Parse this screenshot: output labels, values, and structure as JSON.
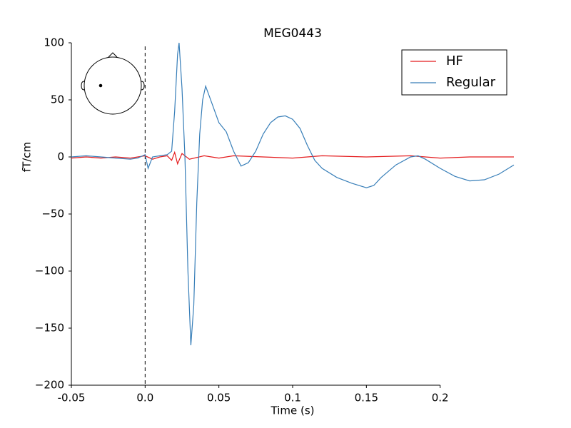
{
  "chart_data": {
    "type": "line",
    "title": "MEG0443",
    "x_label": "Time (s)",
    "y_label": "fT/cm",
    "xlim": [
      -0.05,
      0.25
    ],
    "ylim": [
      -200,
      100
    ],
    "xticks": [
      -0.05,
      {
        "value": 0,
        "label": "0.0"
      },
      0.05,
      0.1,
      0.15,
      0.2
    ],
    "yticks": [
      {
        "value": -200,
        "label": "−200"
      },
      {
        "value": -150,
        "label": "−150"
      },
      {
        "value": -100,
        "label": "−100"
      },
      {
        "value": -50,
        "label": "−50"
      },
      0,
      50,
      100
    ],
    "legend": "upper right",
    "series": [
      {
        "name": "HF",
        "color": "#e41a1c",
        "x": [
          -0.05,
          -0.04,
          -0.03,
          -0.02,
          -0.01,
          0,
          0.005,
          0.01,
          0.015,
          0.018,
          0.02,
          0.022,
          0.025,
          0.03,
          0.04,
          0.05,
          0.06,
          0.08,
          0.1,
          0.12,
          0.15,
          0.18,
          0.2,
          0.22,
          0.25
        ],
        "values": [
          -1,
          0,
          -1,
          0,
          -1,
          1,
          -2,
          0,
          1,
          -3,
          4,
          -6,
          3,
          -2,
          1,
          -1,
          1,
          0,
          -1,
          1,
          0,
          1,
          -1,
          0,
          0
        ]
      },
      {
        "name": "Regular",
        "color": "#377eb8",
        "x": [
          -0.05,
          -0.04,
          -0.03,
          -0.02,
          -0.01,
          -0.005,
          0,
          0.002,
          0.005,
          0.01,
          0.015,
          0.018,
          0.02,
          0.022,
          0.023,
          0.025,
          0.027,
          0.029,
          0.031,
          0.033,
          0.035,
          0.037,
          0.039,
          0.041,
          0.045,
          0.05,
          0.055,
          0.06,
          0.065,
          0.07,
          0.075,
          0.08,
          0.085,
          0.09,
          0.095,
          0.1,
          0.105,
          0.11,
          0.115,
          0.12,
          0.13,
          0.14,
          0.15,
          0.155,
          0.16,
          0.17,
          0.18,
          0.185,
          0.19,
          0.2,
          0.21,
          0.22,
          0.23,
          0.24,
          0.25
        ],
        "values": [
          0,
          1,
          0,
          -1,
          -2,
          -1,
          2,
          -10,
          0,
          1,
          2,
          5,
          40,
          90,
          100,
          60,
          0,
          -100,
          -165,
          -130,
          -40,
          20,
          50,
          62,
          48,
          30,
          22,
          5,
          -8,
          -5,
          5,
          20,
          30,
          35,
          36,
          33,
          25,
          10,
          -3,
          -10,
          -18,
          -23,
          -27,
          -25,
          -18,
          -7,
          0,
          1,
          -2,
          -10,
          -17,
          -21,
          -20,
          -15,
          -7
        ]
      }
    ]
  }
}
